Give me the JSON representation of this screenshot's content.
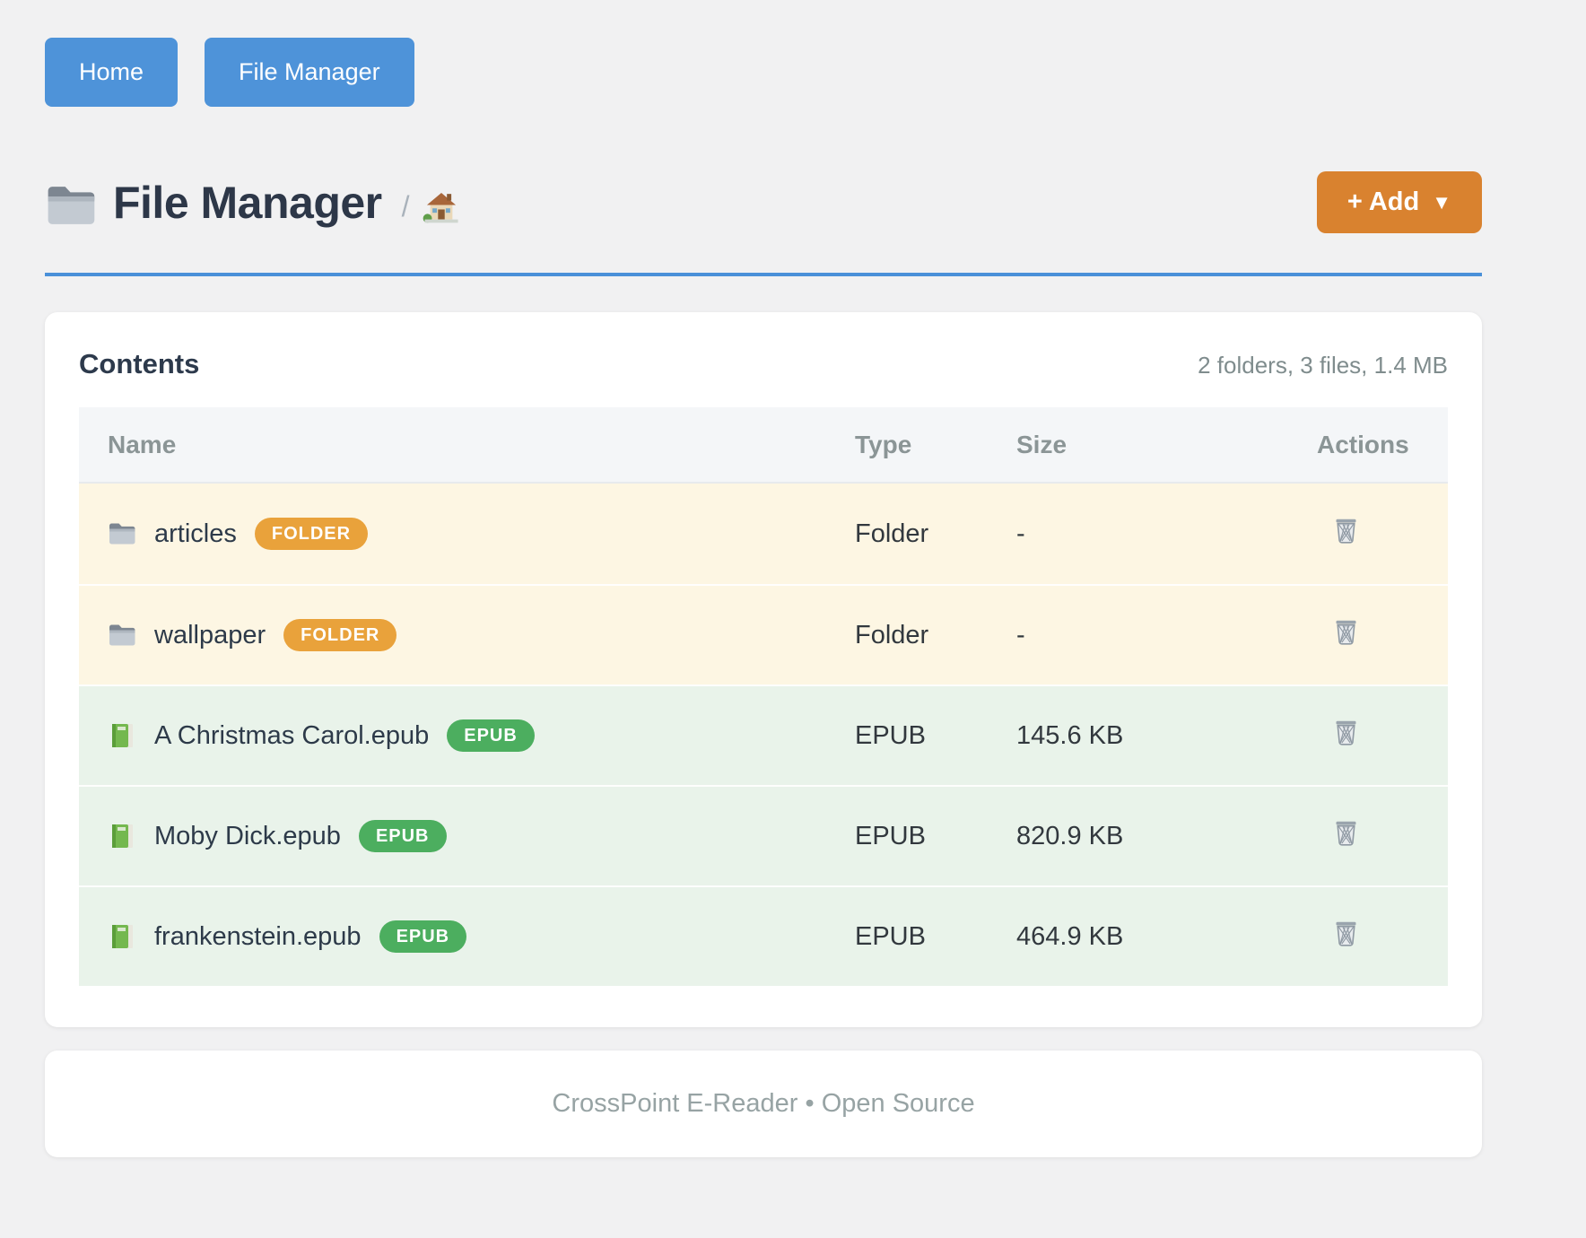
{
  "nav": {
    "buttons": [
      {
        "label": "Home"
      },
      {
        "label": "File Manager"
      }
    ]
  },
  "header": {
    "title": "File Manager",
    "breadcrumb_separator": "/",
    "add_label": "+ Add",
    "add_caret": "▼"
  },
  "contents": {
    "title": "Contents",
    "summary": "2 folders, 3 files, 1.4 MB",
    "columns": [
      "Name",
      "Type",
      "Size",
      "Actions"
    ],
    "rows": [
      {
        "name": "articles",
        "kind": "folder",
        "icon": "folder-icon",
        "badge": "FOLDER",
        "type": "Folder",
        "size": "-"
      },
      {
        "name": "wallpaper",
        "kind": "folder",
        "icon": "folder-icon",
        "badge": "FOLDER",
        "type": "Folder",
        "size": "-"
      },
      {
        "name": "A Christmas Carol.epub",
        "kind": "epub",
        "icon": "book-icon",
        "badge": "EPUB",
        "type": "EPUB",
        "size": "145.6 KB"
      },
      {
        "name": "Moby Dick.epub",
        "kind": "epub",
        "icon": "book-icon",
        "badge": "EPUB",
        "type": "EPUB",
        "size": "820.9 KB"
      },
      {
        "name": "frankenstein.epub",
        "kind": "epub",
        "icon": "book-icon",
        "badge": "EPUB",
        "type": "EPUB",
        "size": "464.9 KB"
      }
    ]
  },
  "footer": {
    "text": "CrossPoint E-Reader • Open Source"
  },
  "colors": {
    "accent_blue": "#4e93d9",
    "accent_orange": "#d9822f",
    "badge_folder": "#e9a23b",
    "badge_epub": "#4cae5f",
    "row_folder_bg": "#fdf6e3",
    "row_epub_bg": "#e9f3ea",
    "title_text": "#2d3748",
    "muted_text": "#7f8c8d"
  }
}
